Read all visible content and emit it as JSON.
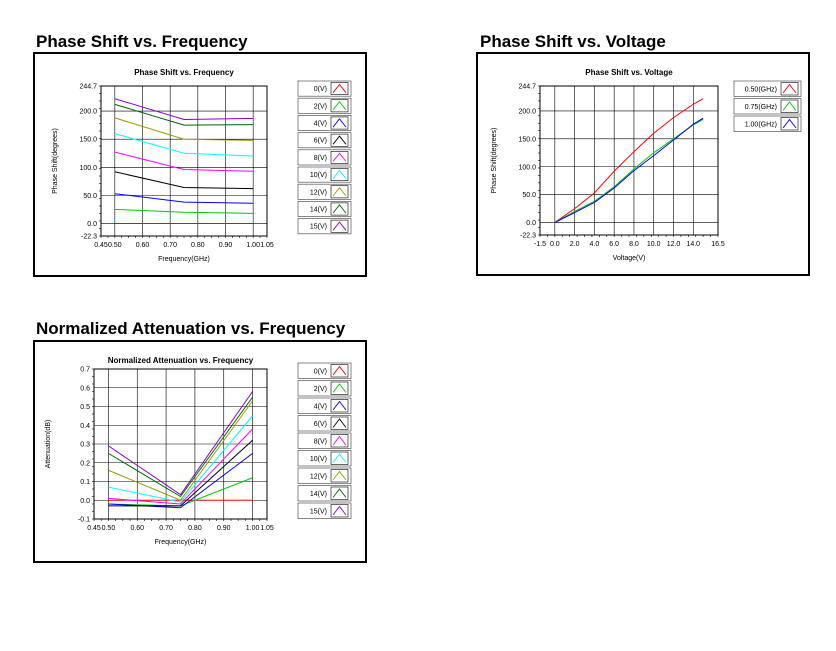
{
  "sections": [
    {
      "title": "Phase Shift vs. Frequency"
    },
    {
      "title": "Phase Shift vs. Voltage"
    },
    {
      "title": "Normalized Attenuation vs. Frequency"
    }
  ],
  "chart_data": [
    {
      "type": "line",
      "title": "Phase Shift vs. Frequency",
      "xlabel": "Frequency(GHz)",
      "ylabel": "Phase Shift(degrees)",
      "xlim": [
        0.45,
        1.05
      ],
      "ylim": [
        -22.3,
        244.7
      ],
      "xticks": [
        "0.45",
        "0.50",
        "0.60",
        "0.70",
        "0.80",
        "0.90",
        "1.00",
        "1.05"
      ],
      "yticks": [
        "-22.3",
        "0.0",
        "50.0",
        "100.0",
        "150.0",
        "200.0",
        "244.7"
      ],
      "grid": true,
      "legend_position": "right",
      "x": [
        0.5,
        0.75,
        1.0
      ],
      "series": [
        {
          "name": "0(V)",
          "color": "#ff0000",
          "values": [
            0,
            0,
            0
          ]
        },
        {
          "name": "2(V)",
          "color": "#00cc00",
          "values": [
            25,
            20,
            18
          ]
        },
        {
          "name": "4(V)",
          "color": "#0000ff",
          "values": [
            53,
            38,
            36
          ]
        },
        {
          "name": "6(V)",
          "color": "#000000",
          "values": [
            92,
            64,
            62
          ]
        },
        {
          "name": "8(V)",
          "color": "#ff00ff",
          "values": [
            127,
            96,
            93
          ]
        },
        {
          "name": "10(V)",
          "color": "#00ffff",
          "values": [
            160,
            125,
            120
          ]
        },
        {
          "name": "12(V)",
          "color": "#999900",
          "values": [
            188,
            150,
            148
          ]
        },
        {
          "name": "14(V)",
          "color": "#006600",
          "values": [
            212,
            175,
            176
          ]
        },
        {
          "name": "15(V)",
          "color": "#8800cc",
          "values": [
            222,
            185,
            187
          ]
        }
      ]
    },
    {
      "type": "line",
      "title": "Phase Shift vs. Voltage",
      "xlabel": "Voltage(V)",
      "ylabel": "Phase Shift(degrees)",
      "xlim": [
        -1.5,
        16.5
      ],
      "ylim": [
        -22.3,
        244.7
      ],
      "xticks": [
        "-1.5",
        "0.0",
        "2.0",
        "4.0",
        "6.0",
        "8.0",
        "10.0",
        "12.0",
        "14.0",
        "16.5"
      ],
      "yticks": [
        "-22.3",
        "0.0",
        "50.0",
        "100.0",
        "150.0",
        "200.0",
        "244.7"
      ],
      "grid": true,
      "legend_position": "right",
      "x": [
        0,
        2,
        4,
        6,
        8,
        10,
        12,
        14,
        15
      ],
      "series": [
        {
          "name": "0.50(GHz)",
          "color": "#ff0000",
          "values": [
            0,
            25,
            53,
            92,
            127,
            160,
            188,
            212,
            222
          ]
        },
        {
          "name": "0.75(GHz)",
          "color": "#00cc00",
          "values": [
            0,
            20,
            38,
            64,
            96,
            125,
            150,
            175,
            185
          ]
        },
        {
          "name": "1.00(GHz)",
          "color": "#0000ff",
          "values": [
            0,
            18,
            36,
            62,
            93,
            120,
            148,
            176,
            187
          ]
        }
      ]
    },
    {
      "type": "line",
      "title": "Normalized Attenuation vs. Frequency",
      "xlabel": "Frequency(GHz)",
      "ylabel": "Attenuation(dB)",
      "xlim": [
        0.45,
        1.05
      ],
      "ylim": [
        -0.1,
        0.7
      ],
      "xticks": [
        "0.45",
        "0.50",
        "0.60",
        "0.70",
        "0.80",
        "0.90",
        "1.00",
        "1.05"
      ],
      "yticks": [
        "-0.1",
        "0.0",
        "0.1",
        "0.2",
        "0.3",
        "0.4",
        "0.5",
        "0.6",
        "0.7"
      ],
      "grid": true,
      "legend_position": "right",
      "x": [
        0.5,
        0.75,
        1.0
      ],
      "series": [
        {
          "name": "0(V)",
          "color": "#ff0000",
          "values": [
            0,
            0,
            0
          ]
        },
        {
          "name": "2(V)",
          "color": "#00cc00",
          "values": [
            -0.02,
            -0.03,
            0.12
          ]
        },
        {
          "name": "4(V)",
          "color": "#0000ff",
          "values": [
            -0.02,
            -0.04,
            0.25
          ]
        },
        {
          "name": "6(V)",
          "color": "#000000",
          "values": [
            -0.03,
            -0.03,
            0.32
          ]
        },
        {
          "name": "8(V)",
          "color": "#ff00ff",
          "values": [
            0.01,
            -0.02,
            0.38
          ]
        },
        {
          "name": "10(V)",
          "color": "#00ffff",
          "values": [
            0.07,
            -0.01,
            0.45
          ]
        },
        {
          "name": "12(V)",
          "color": "#999900",
          "values": [
            0.16,
            0.0,
            0.53
          ]
        },
        {
          "name": "14(V)",
          "color": "#006600",
          "values": [
            0.25,
            0.02,
            0.55
          ]
        },
        {
          "name": "15(V)",
          "color": "#8800cc",
          "values": [
            0.29,
            0.03,
            0.58
          ]
        }
      ]
    }
  ]
}
